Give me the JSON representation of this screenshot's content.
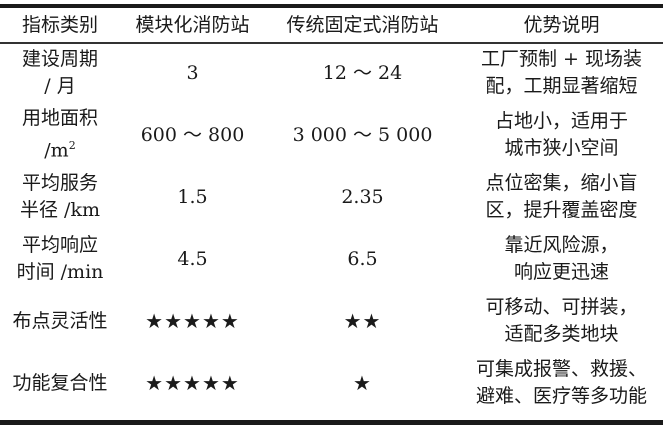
{
  "headers": [
    "指标类别",
    "模块化消防站",
    "传统固定式消防站",
    "优势说明"
  ],
  "rows": [
    {
      "indicator": [
        "建设周期",
        "/ 月"
      ],
      "modular": "3",
      "traditional": "12 ～ 24",
      "advantage": [
        "工厂预制 + 现场装",
        "配，工期显著缩短"
      ]
    },
    {
      "indicator": [
        "用地面积",
        "/m",
        "2"
      ],
      "modular": "600 ～ 800",
      "traditional": "3 000 ～ 5 000",
      "advantage": [
        "占地小，适用于",
        "城市狭小空间"
      ]
    },
    {
      "indicator": [
        "平均服务",
        "半径 /km"
      ],
      "modular": "1.5",
      "traditional": "2.35",
      "advantage": [
        "点位密集，缩小盲",
        "区，提升覆盖密度"
      ]
    },
    {
      "indicator": [
        "平均响应",
        "时间 /min"
      ],
      "modular": "4.5",
      "traditional": "6.5",
      "advantage": [
        "靠近风险源，",
        "响应更迅速"
      ]
    },
    {
      "indicator": [
        "布点灵活性"
      ],
      "modular": "★★★★★",
      "traditional": "★★",
      "advantage": [
        "可移动、可拼装，",
        "适配多类地块"
      ],
      "modular_rating": 5,
      "traditional_rating": 2
    },
    {
      "indicator": [
        "功能复合性"
      ],
      "modular": "★★★★★",
      "traditional": "★",
      "advantage": [
        "可集成报警、救援、",
        "避难、医疗等多功能"
      ],
      "modular_rating": 5,
      "traditional_rating": 1
    }
  ]
}
